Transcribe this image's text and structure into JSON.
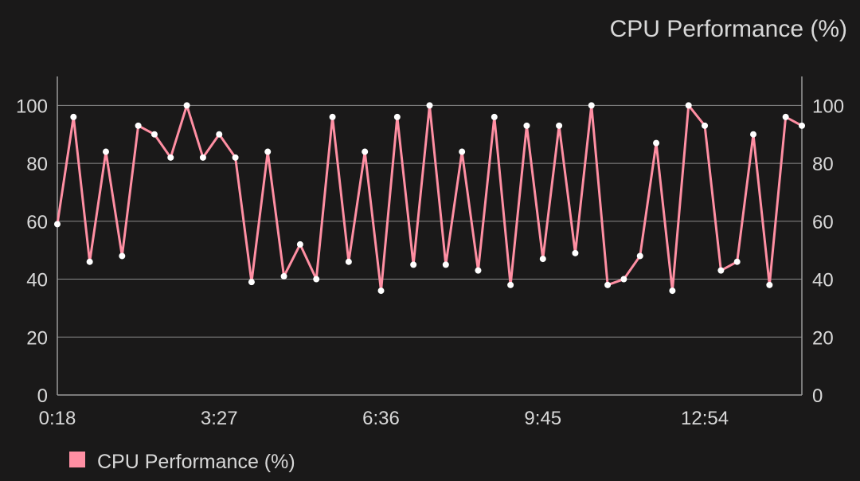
{
  "chart_data": {
    "type": "line",
    "title": "CPU Performance (%)",
    "x_tick_labels": [
      "0:18",
      "3:27",
      "6:36",
      "9:45",
      "12:54"
    ],
    "y_ticks": [
      0,
      20,
      40,
      60,
      80,
      100
    ],
    "ylim": [
      0,
      110
    ],
    "grid": true,
    "legend_position": "bottom-left",
    "series": [
      {
        "name": "CPU Performance (%)",
        "color": "#ff8fa3",
        "values": [
          59,
          96,
          46,
          84,
          48,
          93,
          90,
          82,
          100,
          82,
          90,
          82,
          39,
          84,
          41,
          52,
          40,
          96,
          46,
          84,
          36,
          96,
          45,
          100,
          45,
          84,
          43,
          96,
          38,
          93,
          47,
          93,
          49,
          100,
          38,
          40,
          48,
          87,
          36,
          100,
          93,
          43,
          46,
          90,
          38,
          96,
          93
        ]
      }
    ]
  }
}
